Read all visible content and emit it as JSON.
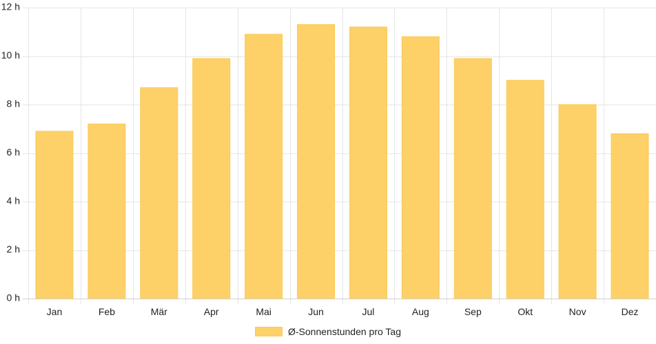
{
  "chart_data": {
    "type": "bar",
    "categories": [
      "Jan",
      "Feb",
      "Mär",
      "Apr",
      "Mai",
      "Jun",
      "Jul",
      "Aug",
      "Sep",
      "Okt",
      "Nov",
      "Dez"
    ],
    "series": [
      {
        "name": "Ø-Sonnenstunden pro Tag",
        "values": [
          6.9,
          7.2,
          8.7,
          9.9,
          10.9,
          11.3,
          11.2,
          10.8,
          9.9,
          9.0,
          8.0,
          6.8
        ]
      }
    ],
    "ylim": [
      0,
      12
    ],
    "yticks": [
      0,
      2,
      4,
      6,
      8,
      10,
      12
    ],
    "ytick_suffix": " h",
    "ytick_labels": [
      "0 h",
      "2 h",
      "4 h",
      "6 h",
      "8 h",
      "10 h",
      "12 h"
    ],
    "grid": true,
    "legend_position": "bottom",
    "bar_color": "#fdd068",
    "grid_color": "#e6e6e6"
  }
}
